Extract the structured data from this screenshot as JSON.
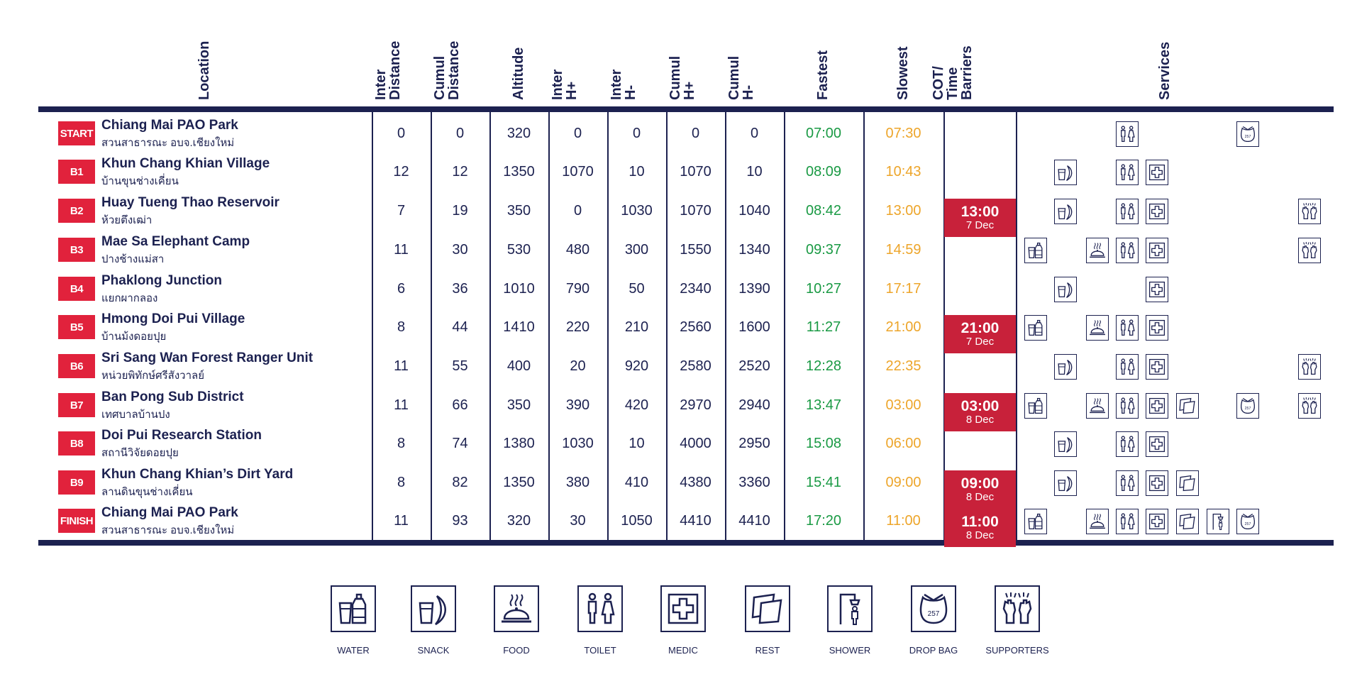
{
  "headers": {
    "location": "Location",
    "inter_distance": "Inter\nDistance",
    "cumul_distance": "Cumul\nDistance",
    "altitude": "Altitude",
    "inter_hplus": "Inter\nH+",
    "inter_hminus": "Inter\nH-",
    "cumul_hplus": "Cumul\nH+",
    "cumul_hminus": "Cumul\nH-",
    "fastest": "Fastest",
    "slowest": "Slowest",
    "cot": "COT/\nTime\nBarriers",
    "services": "Services"
  },
  "rows": [
    {
      "badge": "START",
      "name": "Chiang Mai PAO Park",
      "thai": "สวนสาธารณะ อบจ.เชียงใหม่",
      "inter_distance": "0",
      "cumul_distance": "0",
      "altitude": "320",
      "inter_hplus": "0",
      "inter_hminus": "0",
      "cumul_hplus": "0",
      "cumul_hminus": "0",
      "fastest": "07:00",
      "slowest": "07:30",
      "cot_time": "",
      "cot_date": "",
      "services": [
        "toilet",
        "dropbag"
      ]
    },
    {
      "badge": "B1",
      "name": "Khun Chang Khian Village",
      "thai": "บ้านขุนช่างเคี่ยน",
      "inter_distance": "12",
      "cumul_distance": "12",
      "altitude": "1350",
      "inter_hplus": "1070",
      "inter_hminus": "10",
      "cumul_hplus": "1070",
      "cumul_hminus": "10",
      "fastest": "08:09",
      "slowest": "10:43",
      "cot_time": "",
      "cot_date": "",
      "services": [
        "snack",
        "toilet",
        "medic"
      ]
    },
    {
      "badge": "B2",
      "name": "Huay Tueng Thao Reservoir",
      "thai": "ห้วยตึงเฒ่า",
      "inter_distance": "7",
      "cumul_distance": "19",
      "altitude": "350",
      "inter_hplus": "0",
      "inter_hminus": "1030",
      "cumul_hplus": "1070",
      "cumul_hminus": "1040",
      "fastest": "08:42",
      "slowest": "13:00",
      "cot_time": "13:00",
      "cot_date": "7 Dec",
      "services": [
        "snack",
        "toilet",
        "medic",
        "supporters"
      ]
    },
    {
      "badge": "B3",
      "name": "Mae Sa Elephant Camp",
      "thai": "ปางช้างแม่สา",
      "inter_distance": "11",
      "cumul_distance": "30",
      "altitude": "530",
      "inter_hplus": "480",
      "inter_hminus": "300",
      "cumul_hplus": "1550",
      "cumul_hminus": "1340",
      "fastest": "09:37",
      "slowest": "14:59",
      "cot_time": "",
      "cot_date": "",
      "services": [
        "water",
        "food",
        "toilet",
        "medic",
        "supporters"
      ]
    },
    {
      "badge": "B4",
      "name": "Phaklong Junction",
      "thai": "แยกผากลอง",
      "inter_distance": "6",
      "cumul_distance": "36",
      "altitude": "1010",
      "inter_hplus": "790",
      "inter_hminus": "50",
      "cumul_hplus": "2340",
      "cumul_hminus": "1390",
      "fastest": "10:27",
      "slowest": "17:17",
      "cot_time": "",
      "cot_date": "",
      "services": [
        "snack",
        "medic"
      ]
    },
    {
      "badge": "B5",
      "name": "Hmong Doi Pui Village",
      "thai": "บ้านม้งดอยปุย",
      "inter_distance": "8",
      "cumul_distance": "44",
      "altitude": "1410",
      "inter_hplus": "220",
      "inter_hminus": "210",
      "cumul_hplus": "2560",
      "cumul_hminus": "1600",
      "fastest": "11:27",
      "slowest": "21:00",
      "cot_time": "21:00",
      "cot_date": "7 Dec",
      "services": [
        "water",
        "food",
        "toilet",
        "medic"
      ]
    },
    {
      "badge": "B6",
      "name": "Sri Sang Wan Forest Ranger Unit",
      "thai": "หน่วยพิทักษ์ศรีสังวาลย์",
      "inter_distance": "11",
      "cumul_distance": "55",
      "altitude": "400",
      "inter_hplus": "20",
      "inter_hminus": "920",
      "cumul_hplus": "2580",
      "cumul_hminus": "2520",
      "fastest": "12:28",
      "slowest": "22:35",
      "cot_time": "",
      "cot_date": "",
      "services": [
        "snack",
        "toilet",
        "medic",
        "supporters"
      ]
    },
    {
      "badge": "B7",
      "name": "Ban Pong Sub District",
      "thai": "เทศบาลบ้านปง",
      "inter_distance": "11",
      "cumul_distance": "66",
      "altitude": "350",
      "inter_hplus": "390",
      "inter_hminus": "420",
      "cumul_hplus": "2970",
      "cumul_hminus": "2940",
      "fastest": "13:47",
      "slowest": "03:00",
      "cot_time": "03:00",
      "cot_date": "8 Dec",
      "services": [
        "water",
        "food",
        "toilet",
        "medic",
        "rest",
        "dropbag",
        "supporters"
      ]
    },
    {
      "badge": "B8",
      "name": "Doi Pui Research Station",
      "thai": "สถานีวิจัยดอยปุย",
      "inter_distance": "8",
      "cumul_distance": "74",
      "altitude": "1380",
      "inter_hplus": "1030",
      "inter_hminus": "10",
      "cumul_hplus": "4000",
      "cumul_hminus": "2950",
      "fastest": "15:08",
      "slowest": "06:00",
      "cot_time": "",
      "cot_date": "",
      "services": [
        "snack",
        "toilet",
        "medic"
      ]
    },
    {
      "badge": "B9",
      "name": "Khun Chang Khian’s Dirt Yard",
      "thai": "ลานดินขุนช่างเคี่ยน",
      "inter_distance": "8",
      "cumul_distance": "82",
      "altitude": "1350",
      "inter_hplus": "380",
      "inter_hminus": "410",
      "cumul_hplus": "4380",
      "cumul_hminus": "3360",
      "fastest": "15:41",
      "slowest": "09:00",
      "cot_time": "09:00",
      "cot_date": "8 Dec",
      "services": [
        "snack",
        "toilet",
        "medic",
        "rest"
      ]
    },
    {
      "badge": "FINISH",
      "name": "Chiang Mai PAO Park",
      "thai": "สวนสาธารณะ อบจ.เชียงใหม่",
      "inter_distance": "11",
      "cumul_distance": "93",
      "altitude": "320",
      "inter_hplus": "30",
      "inter_hminus": "1050",
      "cumul_hplus": "4410",
      "cumul_hminus": "4410",
      "fastest": "17:20",
      "slowest": "11:00",
      "cot_time": "11:00",
      "cot_date": "8 Dec",
      "services": [
        "water",
        "food",
        "toilet",
        "medic",
        "rest",
        "shower",
        "dropbag"
      ]
    }
  ],
  "legend": [
    {
      "key": "water",
      "label": "WATER"
    },
    {
      "key": "snack",
      "label": "SNACK"
    },
    {
      "key": "food",
      "label": "FOOD"
    },
    {
      "key": "toilet",
      "label": "TOILET"
    },
    {
      "key": "medic",
      "label": "MEDIC"
    },
    {
      "key": "rest",
      "label": "REST"
    },
    {
      "key": "shower",
      "label": "SHOWER"
    },
    {
      "key": "dropbag",
      "label": "DROP BAG"
    },
    {
      "key": "supporters",
      "label": "SUPPORTERS"
    }
  ],
  "dropbag_number": "257",
  "colors": {
    "navy": "#1c2150",
    "red": "#e1223c",
    "cot_red": "#c8213a",
    "fastest": "#1a9a44",
    "slowest": "#eda52a"
  }
}
